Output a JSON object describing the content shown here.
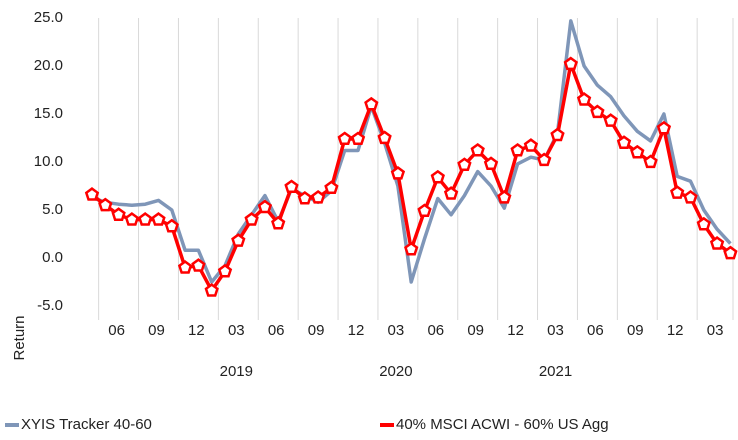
{
  "chart_data": {
    "type": "line",
    "y_label": "Return",
    "categories": [
      null,
      null,
      "06",
      null,
      null,
      "09",
      null,
      null,
      "12",
      null,
      null,
      "03",
      null,
      null,
      "06",
      null,
      null,
      "09",
      null,
      null,
      "12",
      null,
      null,
      "03",
      null,
      null,
      "06",
      null,
      null,
      "09",
      null,
      null,
      "12",
      null,
      null,
      "03",
      null,
      null,
      "06",
      null,
      null,
      "09",
      null,
      null,
      "12",
      null,
      null,
      "03",
      null
    ],
    "years": [
      null,
      null,
      null,
      null,
      null,
      null,
      null,
      null,
      null,
      null,
      null,
      "2019",
      null,
      null,
      null,
      null,
      null,
      null,
      null,
      null,
      null,
      null,
      null,
      "2020",
      null,
      null,
      null,
      null,
      null,
      null,
      null,
      null,
      null,
      null,
      null,
      "2021",
      null,
      null,
      null,
      null,
      null,
      null,
      null,
      null,
      null,
      null,
      null,
      null,
      null
    ],
    "series": [
      {
        "name": "XYIS Tracker 40-60",
        "color": "#7f96b8",
        "marker": false,
        "values": [
          6.3,
          5.8,
          5.6,
          5.5,
          5.6,
          6.0,
          5.0,
          0.8,
          0.8,
          -2.5,
          -0.8,
          2.5,
          4.5,
          6.5,
          3.8,
          7.2,
          6.5,
          5.8,
          7.0,
          11.2,
          11.2,
          15.8,
          12.0,
          7.5,
          -2.5,
          2.0,
          6.2,
          4.5,
          6.5,
          9.0,
          7.5,
          5.2,
          9.8,
          10.5,
          10.2,
          13.0,
          24.7,
          20.0,
          18.0,
          16.8,
          14.8,
          13.2,
          12.2,
          15.0,
          8.5,
          8.0,
          5.0,
          3.0,
          1.5
        ]
      },
      {
        "name": "40% MSCI ACWI - 60% US Agg",
        "color": "#ff0000",
        "marker": true,
        "values": [
          6.6,
          5.5,
          4.5,
          4.0,
          4.0,
          4.0,
          3.3,
          -1.0,
          -0.8,
          -3.4,
          -1.4,
          1.8,
          4.0,
          5.3,
          3.6,
          7.4,
          6.2,
          6.3,
          7.3,
          12.4,
          12.4,
          16.0,
          12.5,
          8.8,
          0.9,
          4.9,
          8.4,
          6.7,
          9.7,
          11.2,
          9.8,
          6.3,
          11.2,
          11.7,
          10.2,
          12.8,
          20.2,
          16.5,
          15.2,
          14.3,
          12.0,
          11.0,
          10.0,
          13.5,
          6.8,
          6.3,
          3.5,
          1.5,
          0.5
        ]
      }
    ],
    "ylim": [
      -5,
      25
    ],
    "yticks": [
      {
        "value": -5,
        "label": "-5.0"
      },
      {
        "value": 0,
        "label": "0.0"
      },
      {
        "value": 5,
        "label": "5.0"
      },
      {
        "value": 10,
        "label": "10.0"
      },
      {
        "value": 15,
        "label": "15.0"
      },
      {
        "value": 20,
        "label": "20.0"
      },
      {
        "value": 25,
        "label": "25.0"
      }
    ],
    "grid": "x"
  }
}
